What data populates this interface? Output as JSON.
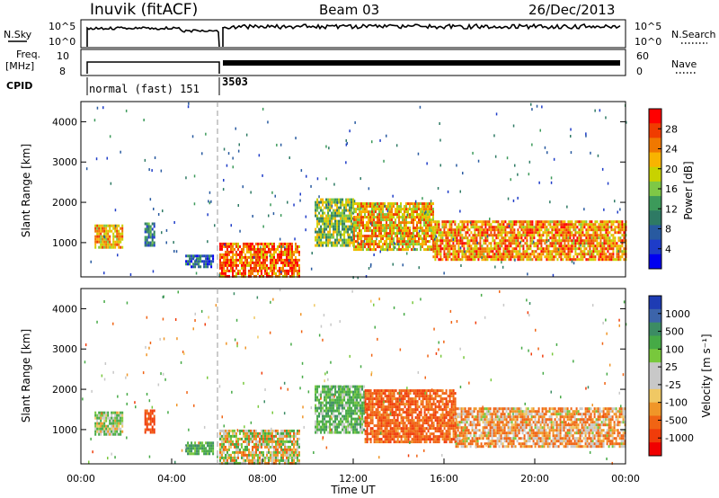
{
  "header": {
    "station": "Inuvik (fitACF)",
    "beam": "Beam 03",
    "date": "26/Dec/2013"
  },
  "top_panels": {
    "nsky_label": "N.Sky",
    "nsky_ticks": [
      "10^5",
      "10^0"
    ],
    "nsearch_label": "N.Search",
    "nsearch_ticks": [
      "10^5",
      "10^0"
    ],
    "freq_label_1": "Freq.",
    "freq_label_2": "[MHz]",
    "freq_ticks": [
      "10",
      "8"
    ],
    "nave_label": "Nave",
    "nave_ticks": [
      "60",
      "0"
    ],
    "cpid_label": "CPID",
    "cpid_segments": [
      {
        "text": "normal (fast) 151",
        "start_hour": 0.0,
        "end_hour": 6.0
      },
      {
        "text": "3503",
        "start_hour": 6.0,
        "end_hour": 24.0
      }
    ]
  },
  "chart_data": [
    {
      "type": "heatmap",
      "panel": "power",
      "ylabel": "Slant Range [km]",
      "xlim_hours": [
        0,
        24
      ],
      "ylim": [
        150,
        4500
      ],
      "yticks": [
        "1000",
        "2000",
        "3000",
        "4000"
      ],
      "colorbar_label": "Power [dB]",
      "colorbar_ticks": [
        "28",
        "24",
        "20",
        "16",
        "12",
        "8",
        "4"
      ],
      "colorbar_colors": [
        "#ff0000",
        "#f03c00",
        "#f07800",
        "#f8b400",
        "#c8d200",
        "#7ec846",
        "#3c9a5a",
        "#2e7a64",
        "#285aa0",
        "#1e3cc8",
        "#0000f0"
      ],
      "regions": [
        {
          "t0": 0.6,
          "t1": 1.8,
          "r0": 850,
          "r1": 1450,
          "value": 22
        },
        {
          "t0": 2.8,
          "t1": 3.2,
          "r0": 900,
          "r1": 1500,
          "value": 10
        },
        {
          "t0": 4.6,
          "t1": 5.8,
          "r0": 400,
          "r1": 700,
          "value": 8
        },
        {
          "t0": 6.1,
          "t1": 9.6,
          "r0": 150,
          "r1": 1000,
          "value": 26
        },
        {
          "t0": 10.3,
          "t1": 12.0,
          "r0": 900,
          "r1": 2100,
          "value": 16
        },
        {
          "t0": 12.0,
          "t1": 15.5,
          "r0": 800,
          "r1": 2000,
          "value": 22
        },
        {
          "t0": 15.5,
          "t1": 24.0,
          "r0": 550,
          "r1": 1550,
          "value": 24
        }
      ]
    },
    {
      "type": "heatmap",
      "panel": "velocity",
      "ylabel": "Slant Range [km]",
      "xlabel": "Time UT",
      "xlim_hours": [
        0,
        24
      ],
      "ylim": [
        150,
        4500
      ],
      "yticks": [
        "1000",
        "2000",
        "3000",
        "4000"
      ],
      "xticks": [
        "00:00",
        "04:00",
        "08:00",
        "12:00",
        "16:00",
        "20:00",
        "00:00"
      ],
      "colorbar_label": "Velocity [m s⁻¹]",
      "colorbar_ticks": [
        "1000",
        "500",
        "100",
        "25",
        "-25",
        "-100",
        "-500",
        "-1000"
      ],
      "colorbar_colors": [
        "#1e3cb4",
        "#3c64aa",
        "#3c8c64",
        "#46aa46",
        "#78c83c",
        "#c8c8c8",
        "#c8c8c8",
        "#f0c864",
        "#f09628",
        "#f06414",
        "#f03c0a",
        "#f00000"
      ],
      "regions": [
        {
          "t0": 0.6,
          "t1": 1.8,
          "r0": 850,
          "r1": 1450,
          "value": 50
        },
        {
          "t0": 2.8,
          "t1": 3.2,
          "r0": 900,
          "r1": 1500,
          "value": -300
        },
        {
          "t0": 4.6,
          "t1": 5.8,
          "r0": 400,
          "r1": 700,
          "value": 200
        },
        {
          "t0": 6.1,
          "t1": 9.6,
          "r0": 150,
          "r1": 1000,
          "value": 0
        },
        {
          "t0": 10.3,
          "t1": 12.5,
          "r0": 900,
          "r1": 2100,
          "value": 150
        },
        {
          "t0": 12.5,
          "t1": 16.5,
          "r0": 700,
          "r1": 2000,
          "value": -200
        },
        {
          "t0": 16.5,
          "t1": 24.0,
          "r0": 550,
          "r1": 1550,
          "value": -80
        }
      ]
    }
  ]
}
